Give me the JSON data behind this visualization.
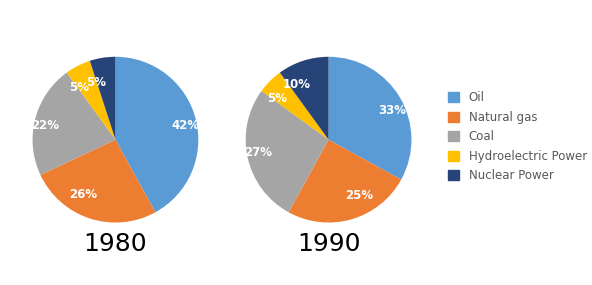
{
  "pie1": {
    "year": "1980",
    "values": [
      42,
      26,
      22,
      5,
      5
    ],
    "labels": [
      "42%",
      "26%",
      "22%",
      "5%",
      "5%"
    ],
    "startangle": 90,
    "colors": [
      "#5B9BD5",
      "#ED7D31",
      "#A5A5A5",
      "#FFC000",
      "#264478"
    ]
  },
  "pie2": {
    "year": "1990",
    "values": [
      33,
      25,
      27,
      5,
      10
    ],
    "labels": [
      "33%",
      "25%",
      "27%",
      "5%",
      "10%"
    ],
    "startangle": 90,
    "colors": [
      "#5B9BD5",
      "#ED7D31",
      "#A5A5A5",
      "#FFC000",
      "#264478"
    ]
  },
  "legend_labels": [
    "Oil",
    "Natural gas",
    "Coal",
    "Hydroelectric Power",
    "Nuclear Power"
  ],
  "legend_colors": [
    "#5B9BD5",
    "#ED7D31",
    "#A5A5A5",
    "#FFC000",
    "#264478"
  ],
  "year_fontsize": 18,
  "label_fontsize": 8.5,
  "label_color": "white",
  "background_color": "#FFFFFF"
}
